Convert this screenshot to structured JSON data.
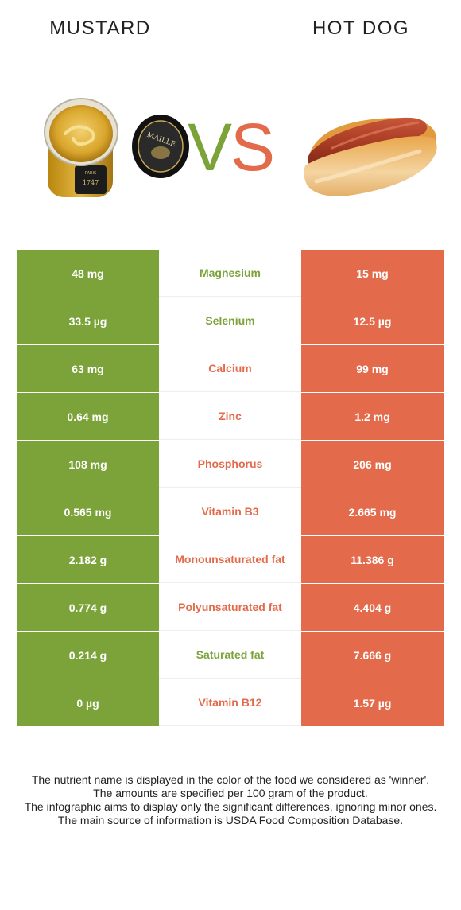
{
  "header": {
    "left_food": "MUSTARD",
    "right_food": "HOT DOG",
    "vs_v": "V",
    "vs_s": "S"
  },
  "colors": {
    "mustard": "#7ba33a",
    "hot_dog": "#e36b4b"
  },
  "rows": [
    {
      "left": "48 mg",
      "nutrient": "Magnesium",
      "right": "15 mg",
      "winner": "mustard"
    },
    {
      "left": "33.5 µg",
      "nutrient": "Selenium",
      "right": "12.5 µg",
      "winner": "mustard"
    },
    {
      "left": "63 mg",
      "nutrient": "Calcium",
      "right": "99 mg",
      "winner": "hotdog"
    },
    {
      "left": "0.64 mg",
      "nutrient": "Zinc",
      "right": "1.2 mg",
      "winner": "hotdog"
    },
    {
      "left": "108 mg",
      "nutrient": "Phosphorus",
      "right": "206 mg",
      "winner": "hotdog"
    },
    {
      "left": "0.565 mg",
      "nutrient": "Vitamin B3",
      "right": "2.665 mg",
      "winner": "hotdog"
    },
    {
      "left": "2.182 g",
      "nutrient": "Monounsaturated fat",
      "right": "11.386 g",
      "winner": "hotdog"
    },
    {
      "left": "0.774 g",
      "nutrient": "Polyunsaturated fat",
      "right": "4.404 g",
      "winner": "hotdog"
    },
    {
      "left": "0.214 g",
      "nutrient": "Saturated fat",
      "right": "7.666 g",
      "winner": "mustard"
    },
    {
      "left": "0 µg",
      "nutrient": "Vitamin B12",
      "right": "1.57 µg",
      "winner": "hotdog"
    }
  ],
  "footnote": {
    "line1": "The nutrient name is displayed in the color of the food we considered as 'winner'.",
    "line2": "The amounts are specified per 100 gram of the product.",
    "line3": "The infographic aims to display only the significant differences, ignoring minor ones.",
    "line4": "The main source of information is USDA Food Composition Database."
  },
  "images": {
    "mustard_jar_label": "MAILLE",
    "mustard_jar_year": "1747",
    "mustard_jar_city": "PARIS"
  }
}
